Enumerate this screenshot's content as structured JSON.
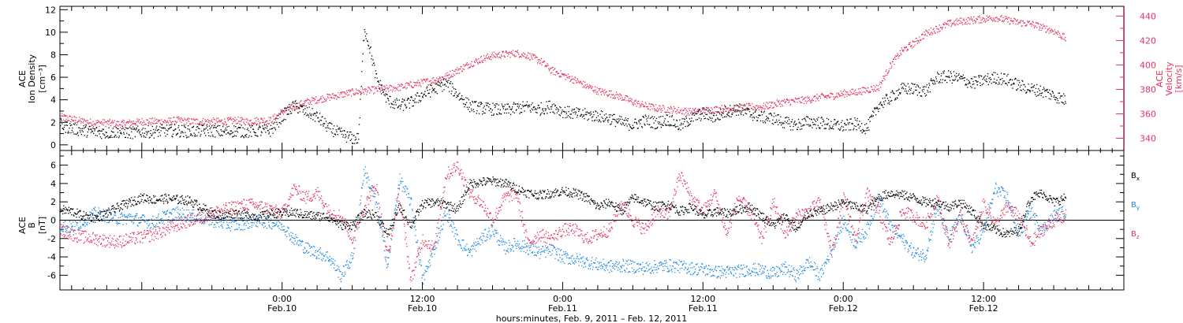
{
  "chart_data": [
    {
      "type": "scatter",
      "ylabel_left": [
        "ACE",
        "Ion Density",
        "[cm⁻³]"
      ],
      "ylabel_right": [
        "ACE",
        "Velocity",
        "[km/s]"
      ],
      "ylim_left": [
        -0.5,
        12.3
      ],
      "ylim_right": [
        330,
        448
      ],
      "yticks_left": [
        0,
        2,
        4,
        6,
        8,
        10,
        12
      ],
      "yticks_right": [
        340,
        360,
        380,
        400,
        420,
        440
      ],
      "xlim_hours": [
        -19,
        72
      ],
      "series": [
        {
          "color": "#000000",
          "axis": "left",
          "x": [
            -19,
            -18,
            -17,
            -16,
            -15,
            -14,
            -13,
            -12,
            -11,
            -10,
            -9,
            -8,
            -7,
            -6,
            -5,
            -4,
            -3,
            -2,
            -1,
            0,
            1,
            2,
            3,
            4,
            5,
            6,
            6.5,
            7,
            7.5,
            8,
            9,
            10,
            11,
            12,
            13,
            14,
            15,
            16,
            17,
            18,
            19,
            20,
            21,
            22,
            23,
            24,
            25,
            26,
            27,
            28,
            29,
            30,
            31,
            32,
            33,
            34,
            35,
            36,
            37,
            38,
            39,
            40,
            41,
            42,
            43,
            44,
            45,
            46,
            47,
            48,
            49,
            50,
            51,
            52,
            53,
            54,
            55,
            56,
            57,
            58,
            59,
            60,
            61,
            62,
            63,
            64,
            65,
            66,
            67
          ],
          "y": [
            1.8,
            1.5,
            1.3,
            1.2,
            1.1,
            1.2,
            1.1,
            1.2,
            1.2,
            1.3,
            1.3,
            1.2,
            1.3,
            1.3,
            1.2,
            1.3,
            1.2,
            1.3,
            1.3,
            2.6,
            3.5,
            3.0,
            2.5,
            1.5,
            1.0,
            0.6,
            0.6,
            10.5,
            8.5,
            6.0,
            4.0,
            3.5,
            3.8,
            4.5,
            5.0,
            5.5,
            4.5,
            3.5,
            3.3,
            3.2,
            3.1,
            3.3,
            3.4,
            3.2,
            3.5,
            3.0,
            2.8,
            2.7,
            2.6,
            2.4,
            2.0,
            1.8,
            2.2,
            2.0,
            2.3,
            1.7,
            2.4,
            2.8,
            2.5,
            3.0,
            3.2,
            2.8,
            2.5,
            2.4,
            2.0,
            1.8,
            2.1,
            2.0,
            1.8,
            1.7,
            1.9,
            1.5,
            3.6,
            4.2,
            5.0,
            5.0,
            4.8,
            6.0,
            6.1,
            5.9,
            5.5,
            5.8,
            6.0,
            5.8,
            5.3,
            5.0,
            4.8,
            4.4,
            4.0
          ]
        },
        {
          "color": "#e4335f",
          "axis": "right",
          "x": [
            -19,
            -18,
            -17,
            -16,
            -15,
            -14,
            -13,
            -12,
            -11,
            -10,
            -9,
            -8,
            -7,
            -6,
            -5,
            -4,
            -3,
            -2,
            -1,
            0,
            1,
            2,
            3,
            4,
            5,
            6,
            7,
            8,
            9,
            10,
            11,
            12,
            13,
            14,
            15,
            16,
            17,
            18,
            19,
            20,
            21,
            22,
            23,
            24,
            25,
            26,
            27,
            28,
            29,
            30,
            31,
            32,
            33,
            34,
            35,
            36,
            37,
            38,
            39,
            40,
            41,
            42,
            43,
            44,
            45,
            46,
            47,
            48,
            49,
            50,
            51,
            52,
            53,
            54,
            55,
            56,
            57,
            58,
            59,
            60,
            61,
            62,
            63,
            64,
            65,
            66,
            67
          ],
          "y": [
            358,
            356,
            354,
            353,
            353,
            352,
            353,
            354,
            354,
            354,
            355,
            354,
            354,
            354,
            354,
            355,
            354,
            355,
            355,
            362,
            366,
            370,
            372,
            374,
            376,
            378,
            379,
            380,
            381,
            382,
            384,
            386,
            388,
            391,
            396,
            401,
            405,
            408,
            409,
            410,
            408,
            404,
            396,
            392,
            388,
            383,
            379,
            377,
            374,
            370,
            367,
            365,
            364,
            363,
            362,
            363,
            364,
            365,
            365,
            366,
            366,
            368,
            370,
            371,
            372,
            374,
            375,
            377,
            378,
            380,
            382,
            400,
            412,
            418,
            426,
            430,
            434,
            436,
            437,
            438,
            439,
            437,
            435,
            434,
            431,
            428,
            422
          ]
        }
      ]
    },
    {
      "type": "scatter",
      "ylabel_left": [
        "ACE",
        "B",
        "[nT]"
      ],
      "ylim": [
        -7.6,
        7.6
      ],
      "yticks": [
        -6,
        -4,
        -2,
        0,
        2,
        4,
        6
      ],
      "xlim_hours": [
        -19,
        72
      ],
      "legend": "right",
      "series": [
        {
          "name": "Bx",
          "color": "#000000",
          "x": [
            -19,
            -18,
            -17,
            -16,
            -15,
            -14,
            -13,
            -12,
            -11,
            -10,
            -9,
            -8,
            -7,
            -6,
            -5,
            -4,
            -3,
            -2,
            -1,
            0,
            1,
            2,
            3,
            4,
            5,
            6,
            7,
            8,
            9,
            10,
            11,
            12,
            13,
            14,
            15,
            16,
            17,
            18,
            19,
            20,
            21,
            22,
            23,
            24,
            25,
            26,
            27,
            28,
            29,
            30,
            31,
            32,
            33,
            34,
            35,
            36,
            37,
            38,
            39,
            40,
            41,
            42,
            43,
            44,
            45,
            46,
            47,
            48,
            49,
            50,
            51,
            52,
            53,
            54,
            55,
            56,
            57,
            58,
            59,
            60,
            61,
            62,
            63,
            64,
            65,
            66,
            67
          ],
          "y": [
            1.2,
            1.0,
            0.5,
            0.3,
            0.8,
            1.5,
            2.0,
            2.5,
            2.3,
            2.4,
            2.3,
            2.2,
            1.5,
            0.8,
            0.5,
            0.8,
            0.6,
            0.4,
            0.8,
            0.8,
            0.9,
            0.6,
            0.5,
            0.4,
            -0.5,
            -0.5,
            0.8,
            0.6,
            -1.5,
            1.5,
            -0.5,
            1.8,
            2.0,
            1.8,
            1.2,
            4.0,
            4.2,
            4.3,
            4.1,
            3.5,
            3.0,
            2.8,
            3.0,
            3.2,
            3.0,
            2.5,
            1.5,
            2.0,
            1.0,
            2.5,
            2.0,
            1.5,
            1.8,
            1.0,
            1.5,
            0.5,
            1.0,
            0.8,
            1.2,
            1.5,
            0.5,
            -0.5,
            0.5,
            -1.0,
            0.8,
            1.0,
            1.5,
            2.0,
            1.5,
            1.2,
            2.5,
            3.0,
            2.8,
            2.5,
            2.0,
            2.0,
            1.5,
            2.0,
            1.0,
            -0.5,
            -1.0,
            -1.5,
            -1.0,
            2.5,
            3.0,
            2.0,
            2.5
          ]
        },
        {
          "name": "By",
          "color": "#1e88e5",
          "x": [
            -19,
            -18,
            -17,
            -16,
            -15,
            -14,
            -13,
            -12,
            -11,
            -10,
            -9,
            -8,
            -7,
            -6,
            -5,
            -4,
            -3,
            -2,
            -1,
            0,
            1,
            2,
            3,
            4,
            5,
            6,
            7,
            8,
            9,
            10,
            11,
            12,
            13,
            14,
            15,
            16,
            17,
            18,
            19,
            20,
            21,
            22,
            23,
            24,
            25,
            26,
            27,
            28,
            29,
            30,
            31,
            32,
            33,
            34,
            35,
            36,
            37,
            38,
            39,
            40,
            41,
            42,
            43,
            44,
            45,
            46,
            47,
            48,
            49,
            50,
            51,
            52,
            53,
            54,
            55,
            56,
            57,
            58,
            59,
            60,
            61,
            62,
            63,
            64,
            65,
            66,
            67
          ],
          "y": [
            -0.5,
            -0.8,
            0.0,
            0.8,
            0.5,
            0.2,
            0.3,
            0.0,
            -0.2,
            0.5,
            0.8,
            0.6,
            0.3,
            0.0,
            -0.3,
            -0.5,
            -0.2,
            0.0,
            -0.2,
            -0.5,
            -2.0,
            -3.0,
            -3.5,
            -4.0,
            -6.0,
            -4.0,
            5.5,
            2.0,
            -5.0,
            4.5,
            2.0,
            -6.5,
            -3.0,
            1.0,
            -2.0,
            -3.5,
            -2.0,
            -1.0,
            -3.0,
            -2.5,
            -3.0,
            -3.5,
            -3.2,
            -4.0,
            -4.2,
            -4.5,
            -4.8,
            -5.0,
            -4.9,
            -5.0,
            -5.2,
            -5.0,
            -4.9,
            -5.0,
            -5.2,
            -5.3,
            -5.6,
            -5.6,
            -5.5,
            -5.3,
            -5.4,
            -5.8,
            -5.2,
            -6.0,
            -4.5,
            -6.0,
            -3.0,
            0.0,
            -2.5,
            -1.0,
            2.5,
            -0.5,
            -2.0,
            -3.5,
            -3.8,
            1.5,
            -2.0,
            0.5,
            -3.0,
            -1.0,
            3.5,
            2.5,
            -1.5,
            1.0,
            -1.0,
            0.5,
            1.0
          ]
        },
        {
          "name": "Bz",
          "color": "#e4335f",
          "x": [
            -19,
            -18,
            -17,
            -16,
            -15,
            -14,
            -13,
            -12,
            -11,
            -10,
            -9,
            -8,
            -7,
            -6,
            -5,
            -4,
            -3,
            -2,
            -1,
            0,
            1,
            2,
            3,
            4,
            5,
            6,
            7,
            8,
            9,
            10,
            11,
            12,
            13,
            14,
            15,
            16,
            17,
            18,
            19,
            20,
            21,
            22,
            23,
            24,
            25,
            26,
            27,
            28,
            29,
            30,
            31,
            32,
            33,
            34,
            35,
            36,
            37,
            38,
            39,
            40,
            41,
            42,
            43,
            44,
            45,
            46,
            47,
            48,
            49,
            50,
            51,
            52,
            53,
            54,
            55,
            56,
            57,
            58,
            59,
            60,
            61,
            62,
            63,
            64,
            65,
            66,
            67
          ],
          "y": [
            -1.0,
            -1.5,
            -1.8,
            -2.0,
            -2.2,
            -2.3,
            -2.0,
            -1.8,
            -1.5,
            -1.0,
            -0.5,
            0.0,
            0.3,
            0.8,
            1.2,
            1.5,
            1.8,
            1.6,
            1.2,
            0.8,
            3.5,
            2.5,
            3.0,
            1.0,
            0.5,
            -2.0,
            1.5,
            4.0,
            -4.0,
            3.0,
            -6.5,
            -2.0,
            -3.0,
            5.0,
            6.0,
            3.0,
            2.0,
            0.0,
            2.5,
            3.0,
            -2.5,
            -1.5,
            -2.0,
            -1.0,
            -1.0,
            -2.0,
            -1.5,
            -1.0,
            2.0,
            0.0,
            -1.0,
            1.0,
            0.5,
            5.0,
            2.5,
            1.0,
            3.0,
            -1.5,
            2.5,
            1.0,
            -2.0,
            2.0,
            -1.5,
            0.5,
            1.0,
            2.0,
            -3.5,
            2.5,
            -2.0,
            3.0,
            1.0,
            -2.5,
            1.0,
            0.5,
            -0.5,
            2.5,
            -2.5,
            0.5,
            -2.5,
            2.0,
            -0.5,
            1.5,
            0.5,
            -2.5,
            -1.0,
            0.0,
            0.5
          ]
        }
      ]
    }
  ],
  "x_axis": {
    "ticks": [
      {
        "hours": 0,
        "time": "0:00",
        "date": "Feb.10"
      },
      {
        "hours": 12,
        "time": "12:00",
        "date": "Feb.10"
      },
      {
        "hours": 24,
        "time": "0:00",
        "date": "Feb.11"
      },
      {
        "hours": 36,
        "time": "12:00",
        "date": "Feb.11"
      },
      {
        "hours": 48,
        "time": "0:00",
        "date": "Feb.12"
      },
      {
        "hours": 60,
        "time": "12:00",
        "date": "Feb.12"
      }
    ],
    "title": "hours:minutes, Feb. 9, 2011 – Feb. 12, 2011"
  },
  "legend_labels": {
    "bx": "B",
    "bx_sub": "x",
    "by": "B",
    "by_sub": "y",
    "bz": "B",
    "bz_sub": "z"
  }
}
